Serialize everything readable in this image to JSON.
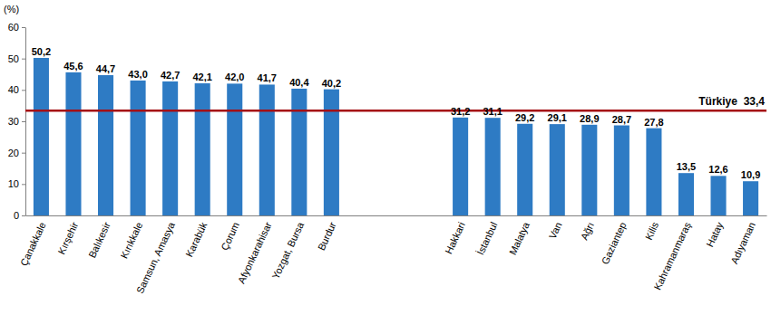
{
  "chart_data": {
    "type": "bar",
    "y_label": "(%)",
    "categories": [
      "Çanakkale",
      "Kırşehir",
      "Balıkesir",
      "Kırıkkale",
      "Samsun, Amasya",
      "Karabük",
      "Çorum",
      "Afyonkarahisar",
      "Yozgat, Bursa",
      "Burdur",
      null,
      null,
      null,
      "Hakkari",
      "İstanbul",
      "Malatya",
      "Van",
      "Ağrı",
      "Gaziantep",
      "Kilis",
      "Kahramanmaraş",
      "Hatay",
      "Adıyaman"
    ],
    "values": [
      50.2,
      45.6,
      44.7,
      43.0,
      42.7,
      42.1,
      42.0,
      41.7,
      40.4,
      40.2,
      null,
      null,
      null,
      31.2,
      31.1,
      29.2,
      29.1,
      28.9,
      28.7,
      27.8,
      13.5,
      12.6,
      10.9
    ],
    "value_labels": [
      "50,2",
      "45,6",
      "44,7",
      "43,0",
      "42,7",
      "42,1",
      "42,0",
      "41,7",
      "40,4",
      "40,2",
      null,
      null,
      null,
      "31,2",
      "31,1",
      "29,2",
      "29,1",
      "28,9",
      "28,7",
      "27,8",
      "13,5",
      "12,6",
      "10,9"
    ],
    "color": "#2e7bc4",
    "data_labels": true,
    "grid": false,
    "ylim": [
      0,
      60
    ],
    "yticks": [
      0,
      10,
      20,
      30,
      40,
      50,
      60
    ],
    "reference_line": {
      "value": 33.4,
      "label": "Türkiye  33,4"
    }
  }
}
